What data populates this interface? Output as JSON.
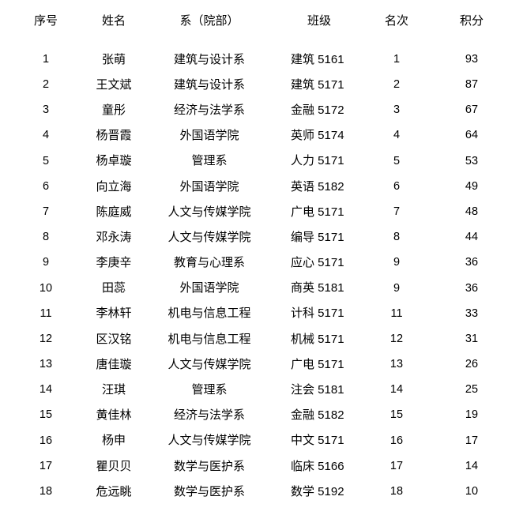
{
  "table": {
    "headers": [
      "序号",
      "姓名",
      "系（院部）",
      "班级",
      "名次",
      "积分"
    ],
    "rows": [
      {
        "index": "1",
        "name": "张萌",
        "department": "建筑与设计系",
        "class": "建筑 5161",
        "rank": "1",
        "score": "93"
      },
      {
        "index": "2",
        "name": "王文斌",
        "department": "建筑与设计系",
        "class": "建筑 5171",
        "rank": "2",
        "score": "87"
      },
      {
        "index": "3",
        "name": "童彤",
        "department": "经济与法学系",
        "class": "金融 5172",
        "rank": "3",
        "score": "67"
      },
      {
        "index": "4",
        "name": "杨晋霞",
        "department": "外国语学院",
        "class": "英师 5174",
        "rank": "4",
        "score": "64"
      },
      {
        "index": "5",
        "name": "杨卓璇",
        "department": "管理系",
        "class": "人力 5171",
        "rank": "5",
        "score": "53"
      },
      {
        "index": "6",
        "name": "向立海",
        "department": "外国语学院",
        "class": "英语 5182",
        "rank": "6",
        "score": "49"
      },
      {
        "index": "7",
        "name": "陈庭威",
        "department": "人文与传媒学院",
        "class": "广电 5171",
        "rank": "7",
        "score": "48"
      },
      {
        "index": "8",
        "name": "邓永涛",
        "department": "人文与传媒学院",
        "class": "编导 5171",
        "rank": "8",
        "score": "44"
      },
      {
        "index": "9",
        "name": "李庚辛",
        "department": "教育与心理系",
        "class": "应心 5171",
        "rank": "9",
        "score": "36"
      },
      {
        "index": "10",
        "name": "田蕊",
        "department": "外国语学院",
        "class": "商英 5181",
        "rank": "9",
        "score": "36"
      },
      {
        "index": "11",
        "name": "李林轩",
        "department": "机电与信息工程",
        "class": "计科 5171",
        "rank": "11",
        "score": "33"
      },
      {
        "index": "12",
        "name": "区汉铭",
        "department": "机电与信息工程",
        "class": "机械 5171",
        "rank": "12",
        "score": "31"
      },
      {
        "index": "13",
        "name": "唐佳璇",
        "department": "人文与传媒学院",
        "class": "广电 5171",
        "rank": "13",
        "score": "26"
      },
      {
        "index": "14",
        "name": "汪琪",
        "department": "管理系",
        "class": "注会 5181",
        "rank": "14",
        "score": "25"
      },
      {
        "index": "15",
        "name": "黄佳林",
        "department": "经济与法学系",
        "class": "金融 5182",
        "rank": "15",
        "score": "19"
      },
      {
        "index": "16",
        "name": "杨申",
        "department": "人文与传媒学院",
        "class": "中文 5171",
        "rank": "16",
        "score": "17"
      },
      {
        "index": "17",
        "name": "瞿贝贝",
        "department": "数学与医护系",
        "class": "临床 5166",
        "rank": "17",
        "score": "14"
      },
      {
        "index": "18",
        "name": "危远眺",
        "department": "数学与医护系",
        "class": "数学 5192",
        "rank": "18",
        "score": "10"
      }
    ],
    "text_color": "#000000",
    "background_color": "#ffffff"
  }
}
